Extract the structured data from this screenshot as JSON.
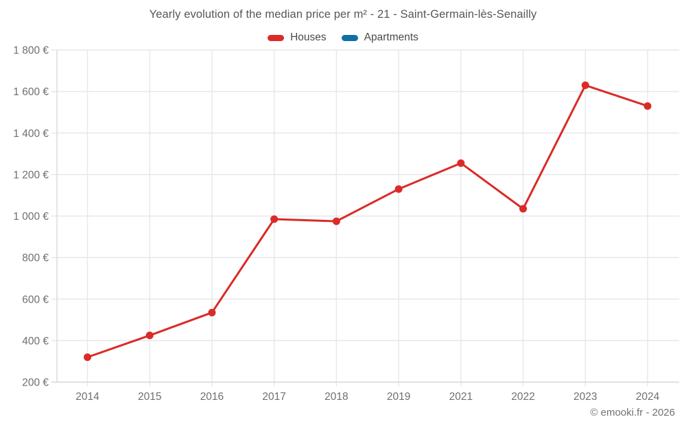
{
  "header": {
    "title": "Yearly evolution of the median price per m² - 21 - Saint-Germain-lès-Senailly"
  },
  "legend": {
    "items": [
      {
        "label": "Houses",
        "color": "#d92b27"
      },
      {
        "label": "Apartments",
        "color": "#1170a3"
      }
    ]
  },
  "footer": {
    "credit": "© emooki.fr - 2026"
  },
  "colors": {
    "houses": "#d92b27",
    "apartments": "#1170a3",
    "grid": "#e7e7e7",
    "axis": "#dadada",
    "tick_label": "#6f6f6f",
    "title": "#565656"
  },
  "chart_data": {
    "type": "line",
    "title": "Yearly evolution of the median price per m² - 21 - Saint-Germain-lès-Senailly",
    "categories": [
      "2014",
      "2015",
      "2016",
      "2017",
      "2018",
      "2019",
      "2021",
      "2022",
      "2023",
      "2024"
    ],
    "series": [
      {
        "name": "Houses",
        "color": "#d92b27",
        "values": [
          320,
          425,
          535,
          985,
          975,
          1130,
          1255,
          1035,
          1630,
          1530
        ]
      },
      {
        "name": "Apartments",
        "color": "#1170a3",
        "values": []
      }
    ],
    "xlabel": "",
    "ylabel": "",
    "ylim": [
      200,
      1800
    ],
    "ytick_step": 200,
    "ytick_suffix": " €",
    "grid": true,
    "legend_position": "top",
    "point_radius": 5.5,
    "line_width": 3
  }
}
